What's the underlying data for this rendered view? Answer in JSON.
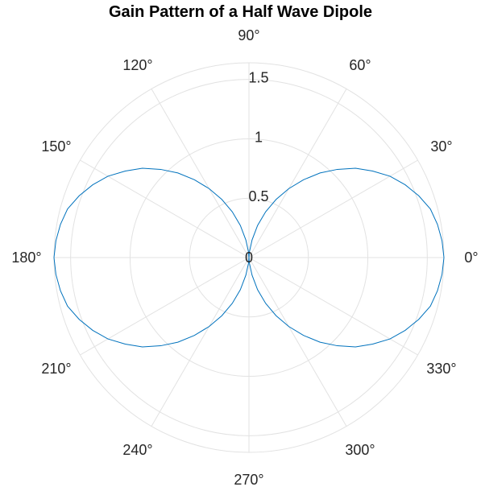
{
  "chart_data": {
    "type": "polar-line",
    "title": "Gain Pattern of a Half Wave Dipole",
    "theta_unit": "degrees",
    "theta_ticks": [
      0,
      30,
      60,
      90,
      120,
      150,
      180,
      210,
      240,
      270,
      300,
      330
    ],
    "theta_tick_labels": [
      "0°",
      "30°",
      "60°",
      "90°",
      "120°",
      "150°",
      "180°",
      "210°",
      "240°",
      "270°",
      "300°",
      "330°"
    ],
    "r_ticks": [
      0,
      0.5,
      1,
      1.5
    ],
    "r_tick_labels": [
      "0",
      "0.5",
      "1",
      "1.5"
    ],
    "rlim": [
      0,
      1.64
    ],
    "r_label_angle": 90,
    "grid": true,
    "series": [
      {
        "color": "#0072bd",
        "theta": [
          0,
          5,
          10,
          15,
          20,
          25,
          30,
          35,
          40,
          45,
          50,
          55,
          60,
          65,
          70,
          75,
          80,
          85,
          90,
          95,
          100,
          105,
          110,
          115,
          120,
          125,
          130,
          135,
          140,
          145,
          150,
          155,
          160,
          165,
          170,
          175,
          180,
          185,
          190,
          195,
          200,
          205,
          210,
          215,
          220,
          225,
          230,
          235,
          240,
          245,
          250,
          255,
          260,
          265,
          270,
          275,
          280,
          285,
          290,
          295,
          300,
          305,
          310,
          315,
          320,
          325,
          330,
          335,
          340,
          345,
          350,
          355,
          360
        ],
        "r": [
          1.64,
          1.63,
          1.61,
          1.58,
          1.52,
          1.45,
          1.37,
          1.27,
          1.17,
          1.05,
          0.93,
          0.8,
          0.67,
          0.54,
          0.41,
          0.28,
          0.15,
          0.05,
          0.0,
          0.05,
          0.15,
          0.28,
          0.41,
          0.54,
          0.67,
          0.8,
          0.93,
          1.05,
          1.17,
          1.27,
          1.37,
          1.45,
          1.52,
          1.58,
          1.61,
          1.63,
          1.64,
          1.63,
          1.61,
          1.58,
          1.52,
          1.45,
          1.37,
          1.27,
          1.17,
          1.05,
          0.93,
          0.8,
          0.67,
          0.54,
          0.41,
          0.28,
          0.15,
          0.05,
          0.0,
          0.05,
          0.15,
          0.28,
          0.41,
          0.54,
          0.67,
          0.8,
          0.93,
          1.05,
          1.17,
          1.27,
          1.37,
          1.45,
          1.52,
          1.58,
          1.61,
          1.63,
          1.64
        ]
      }
    ]
  }
}
